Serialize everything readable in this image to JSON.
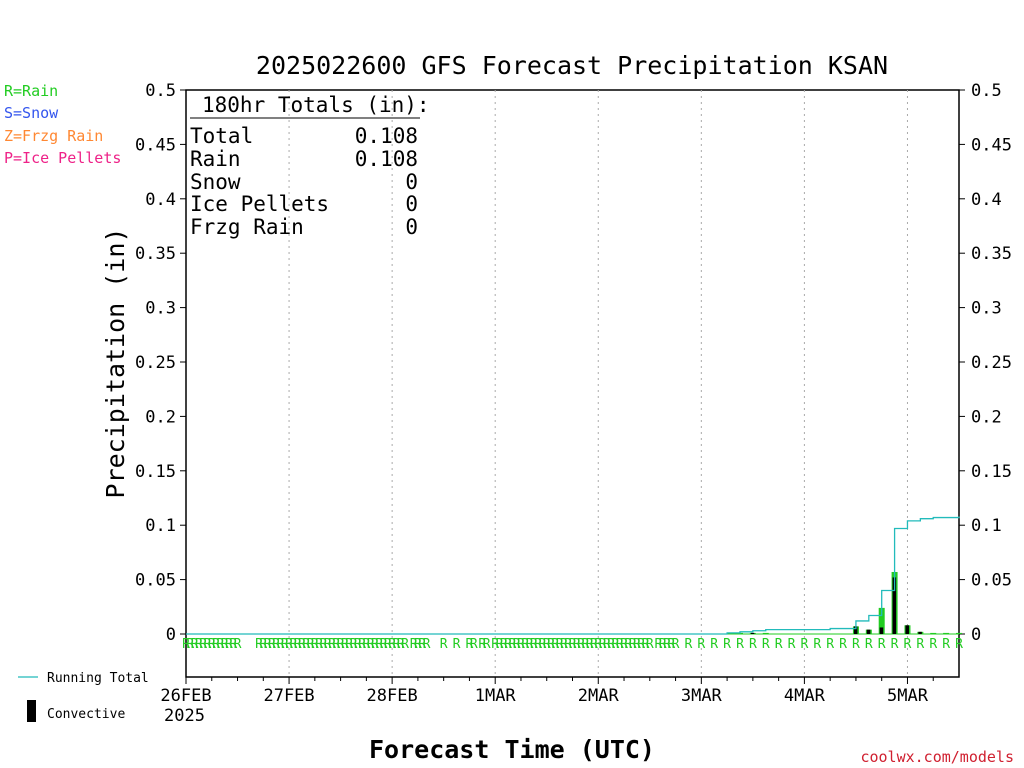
{
  "title": "2025022600 GFS Forecast Precipitation KSAN",
  "precip_key": [
    {
      "label": "R=Rain",
      "color": "#22cc22"
    },
    {
      "label": "S=Snow",
      "color": "#3355ee"
    },
    {
      "label": "Z=Frzg Rain",
      "color": "#ff8833"
    },
    {
      "label": "P=Ice Pellets",
      "color": "#ee2288"
    }
  ],
  "totals": {
    "header": "180hr Totals (in):",
    "rows": [
      {
        "label": "Total",
        "value": "0.108"
      },
      {
        "label": "Rain",
        "value": "0.108"
      },
      {
        "label": "Snow",
        "value": "0"
      },
      {
        "label": "Ice Pellets",
        "value": "0"
      },
      {
        "label": "Frzg Rain",
        "value": "0"
      }
    ]
  },
  "legend": {
    "running_total": "Running Total",
    "convective": "Convective"
  },
  "colors": {
    "rain": "#22cc22",
    "running_total": "#22bbbb",
    "convective": "#000000",
    "grid": "#aaaaaa"
  },
  "credit": "coolwx.com/models",
  "chart_data": {
    "type": "bar",
    "title": "2025022600 GFS Forecast Precipitation KSAN",
    "xlabel": "Forecast Time (UTC)",
    "ylabel": "Precipitation (in)",
    "ylim": [
      0,
      0.5
    ],
    "yticks": [
      "0",
      "0.05",
      "0.1",
      "0.15",
      "0.2",
      "0.25",
      "0.3",
      "0.35",
      "0.4",
      "0.45",
      "0.5"
    ],
    "xlim_hours": [
      0,
      180
    ],
    "xticks": [
      {
        "hour": 0,
        "label": "26FEB",
        "sublabel": "2025"
      },
      {
        "hour": 24,
        "label": "27FEB"
      },
      {
        "hour": 48,
        "label": "28FEB"
      },
      {
        "hour": 72,
        "label": "1MAR"
      },
      {
        "hour": 96,
        "label": "2MAR"
      },
      {
        "hour": 120,
        "label": "3MAR"
      },
      {
        "hour": 144,
        "label": "4MAR"
      },
      {
        "hour": 168,
        "label": "5MAR"
      }
    ],
    "grid": "vertical dotted at day boundaries",
    "precip_type_symbol": "R",
    "precip_type_hours": [
      0,
      1,
      2,
      3,
      4,
      5,
      6,
      7,
      8,
      9,
      10,
      11,
      12,
      17,
      18,
      19,
      20,
      21,
      22,
      23,
      24,
      25,
      26,
      27,
      28,
      29,
      30,
      31,
      32,
      33,
      34,
      35,
      36,
      37,
      38,
      39,
      40,
      41,
      42,
      43,
      44,
      45,
      46,
      47,
      48,
      49,
      50,
      51,
      53,
      54,
      55,
      56,
      60,
      63,
      66,
      67,
      69,
      70,
      72,
      73,
      74,
      75,
      76,
      77,
      78,
      79,
      80,
      81,
      82,
      83,
      84,
      85,
      86,
      87,
      88,
      89,
      90,
      91,
      92,
      93,
      94,
      95,
      96,
      97,
      98,
      99,
      100,
      101,
      102,
      103,
      104,
      105,
      106,
      107,
      108,
      110,
      111,
      112,
      113,
      114,
      117,
      120,
      123,
      126,
      129,
      132,
      135,
      138,
      141,
      144,
      147,
      150,
      153,
      156,
      159,
      162,
      165,
      168,
      171,
      174,
      177,
      180
    ],
    "total_precip_bars": [
      {
        "hour": 129,
        "value": 0.001
      },
      {
        "hour": 132,
        "value": 0.001
      },
      {
        "hour": 135,
        "value": 0.001
      },
      {
        "hour": 156,
        "value": 0.007
      },
      {
        "hour": 159,
        "value": 0.004
      },
      {
        "hour": 162,
        "value": 0.024
      },
      {
        "hour": 165,
        "value": 0.057
      },
      {
        "hour": 168,
        "value": 0.008
      },
      {
        "hour": 171,
        "value": 0.002
      },
      {
        "hour": 174,
        "value": 0.001
      },
      {
        "hour": 177,
        "value": 0.001
      },
      {
        "hour": 180,
        "value": 0.001
      }
    ],
    "convective_bars": [
      {
        "hour": 132,
        "value": 0.001
      },
      {
        "hour": 156,
        "value": 0.007
      },
      {
        "hour": 159,
        "value": 0.004
      },
      {
        "hour": 162,
        "value": 0.006
      },
      {
        "hour": 165,
        "value": 0.052
      },
      {
        "hour": 168,
        "value": 0.008
      },
      {
        "hour": 171,
        "value": 0.002
      }
    ],
    "running_total": [
      [
        0,
        0
      ],
      [
        120,
        0
      ],
      [
        126,
        0.001
      ],
      [
        129,
        0.002
      ],
      [
        132,
        0.003
      ],
      [
        135,
        0.004
      ],
      [
        144,
        0.004
      ],
      [
        150,
        0.005
      ],
      [
        153,
        0.005
      ],
      [
        156,
        0.012
      ],
      [
        159,
        0.017
      ],
      [
        162,
        0.04
      ],
      [
        165,
        0.097
      ],
      [
        168,
        0.104
      ],
      [
        171,
        0.106
      ],
      [
        174,
        0.107
      ],
      [
        177,
        0.107
      ],
      [
        180,
        0.108
      ]
    ]
  }
}
